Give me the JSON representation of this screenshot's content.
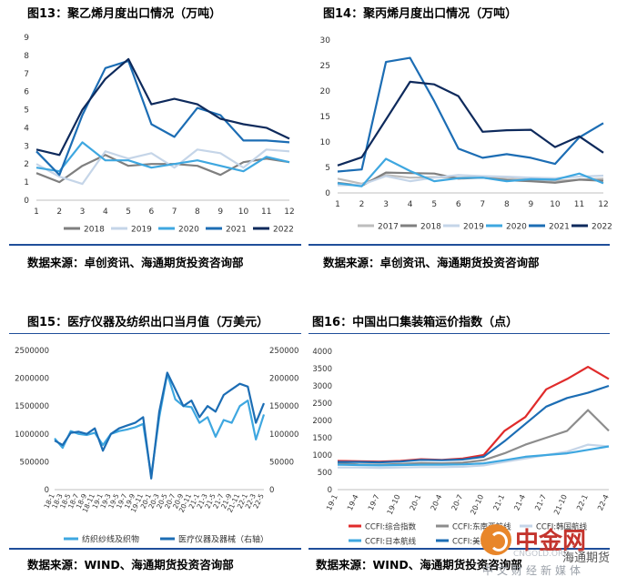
{
  "chart_data": [
    {
      "type": "line",
      "title": "图13：聚乙烯月度出口情况（万吨）",
      "x": [
        1,
        2,
        3,
        4,
        5,
        6,
        7,
        8,
        9,
        10,
        11,
        12
      ],
      "ylim": [
        0,
        9
      ],
      "yticks": [
        0,
        1,
        2,
        3,
        4,
        5,
        6,
        7,
        8,
        9
      ],
      "series": [
        {
          "name": "2018",
          "color": "#7f7f7f",
          "width": 2.2,
          "values": [
            1.5,
            1.0,
            1.9,
            2.5,
            1.9,
            2.0,
            2.0,
            1.9,
            1.4,
            2.1,
            2.3,
            2.1
          ]
        },
        {
          "name": "2019",
          "color": "#c5d5e8",
          "width": 2.2,
          "values": [
            2.0,
            1.3,
            0.9,
            2.7,
            2.3,
            2.6,
            1.8,
            2.8,
            2.6,
            1.8,
            2.8,
            2.7
          ]
        },
        {
          "name": "2020",
          "color": "#3ea7e0",
          "width": 2.2,
          "values": [
            1.8,
            1.6,
            3.2,
            2.2,
            2.2,
            1.8,
            2.0,
            2.2,
            1.9,
            1.6,
            2.4,
            2.1
          ]
        },
        {
          "name": "2021",
          "color": "#1c6db4",
          "width": 2.2,
          "values": [
            2.7,
            1.4,
            4.7,
            7.3,
            7.7,
            4.2,
            3.5,
            5.1,
            4.7,
            3.3,
            3.3,
            3.2
          ]
        },
        {
          "name": "2022",
          "color": "#0e2a5c",
          "width": 2.2,
          "values": [
            2.8,
            2.5,
            5.0,
            6.7,
            7.8,
            5.3,
            5.6,
            5.3,
            4.5,
            4.2,
            4.0,
            3.4
          ]
        }
      ]
    },
    {
      "type": "line",
      "title": "图14：聚丙烯月度出口情况（万吨）",
      "x": [
        1,
        2,
        3,
        4,
        5,
        6,
        7,
        8,
        9,
        10,
        11,
        12
      ],
      "ylim": [
        0,
        30
      ],
      "yticks": [
        0,
        5,
        10,
        15,
        20,
        25,
        30
      ],
      "series": [
        {
          "name": "2017",
          "color": "#bdbdbd",
          "width": 2.2,
          "values": [
            2.8,
            1.8,
            3.5,
            3.0,
            3.1,
            3.0,
            3.1,
            2.8,
            2.6,
            2.4,
            2.6,
            2.8
          ]
        },
        {
          "name": "2018",
          "color": "#7f7f7f",
          "width": 2.2,
          "values": [
            2.0,
            1.4,
            4.0,
            3.9,
            3.8,
            2.8,
            3.0,
            2.5,
            2.3,
            2.0,
            2.6,
            2.4
          ]
        },
        {
          "name": "2019",
          "color": "#c5d5e8",
          "width": 2.2,
          "values": [
            1.5,
            1.6,
            3.3,
            2.3,
            3.0,
            3.5,
            3.3,
            3.2,
            3.0,
            2.9,
            3.2,
            3.4
          ]
        },
        {
          "name": "2020",
          "color": "#3ea7e0",
          "width": 2.2,
          "values": [
            1.9,
            1.3,
            6.7,
            4.3,
            2.3,
            2.9,
            3.0,
            2.3,
            2.7,
            2.6,
            3.8,
            1.9
          ]
        },
        {
          "name": "2021",
          "color": "#1c6db4",
          "width": 2.2,
          "values": [
            4.2,
            4.6,
            25.7,
            26.5,
            18.0,
            8.7,
            6.9,
            7.6,
            6.9,
            5.7,
            10.9,
            13.7
          ]
        },
        {
          "name": "2022",
          "color": "#0e2a5c",
          "width": 2.2,
          "values": [
            5.4,
            7.0,
            14.4,
            21.8,
            21.3,
            19.0,
            12.0,
            12.3,
            12.4,
            9.0,
            11.1,
            7.9
          ]
        }
      ]
    },
    {
      "type": "line",
      "title": "图15：医疗仪器及纺织出口当月值（万美元）",
      "categories": [
        "18-1",
        "18-3",
        "18-5",
        "18-7",
        "18-9",
        "18-11",
        "19-1",
        "19-3",
        "19-5",
        "19-7",
        "19-9",
        "19-11",
        "20-1",
        "20-3",
        "20-5",
        "20-7",
        "20-9",
        "20-11",
        "21-1",
        "21-3",
        "21-5",
        "21-7",
        "21-9",
        "21-11",
        "22-1",
        "22-3",
        "22-5"
      ],
      "ylim_left": [
        0,
        2500000
      ],
      "yticks_left": [
        "0",
        "500000",
        "1000000",
        "1500000",
        "2000000",
        "2500000"
      ],
      "ylim_right": [
        0,
        250000
      ],
      "yticks_right": [
        "0",
        "50000",
        "100000",
        "150000",
        "200000",
        "250000"
      ],
      "series": [
        {
          "name": "纺织纱线及织物",
          "axis": "left",
          "color": "#3ea7e0",
          "width": 2.2,
          "values": [
            920000,
            750000,
            1050000,
            1000000,
            980000,
            1020000,
            800000,
            1000000,
            1050000,
            1080000,
            1120000,
            1180000,
            250000,
            1300000,
            2080000,
            1620000,
            1500000,
            1480000,
            1200000,
            1300000,
            950000,
            1250000,
            1200000,
            1500000,
            1600000,
            900000,
            1350000
          ]
        },
        {
          "name": "医疗仪器及器械（右轴）",
          "axis": "right",
          "color": "#1c6db4",
          "width": 2.2,
          "values": [
            88000,
            80000,
            102000,
            104000,
            100000,
            110000,
            70000,
            100000,
            110000,
            115000,
            120000,
            130000,
            20000,
            140000,
            210000,
            180000,
            150000,
            160000,
            130000,
            150000,
            140000,
            170000,
            180000,
            190000,
            185000,
            120000,
            155000
          ]
        }
      ]
    },
    {
      "type": "line",
      "title": "图16：中国出口集装箱运价指数（点）",
      "categories": [
        "19-1",
        "19-4",
        "19-7",
        "19-10",
        "20-1",
        "20-4",
        "20-7",
        "20-10",
        "21-1",
        "21-4",
        "21-7",
        "21-10",
        "22-1",
        "22-4"
      ],
      "ylim": [
        0,
        4000
      ],
      "yticks": [
        0,
        500,
        1000,
        1500,
        2000,
        2500,
        3000,
        3500,
        4000
      ],
      "series": [
        {
          "name": "CCFI:综合指数",
          "color": "#e02b2b",
          "width": 2.2,
          "values": [
            830,
            820,
            810,
            830,
            880,
            860,
            900,
            1000,
            1700,
            2100,
            2900,
            3200,
            3550,
            3200
          ]
        },
        {
          "name": "CCFI:东南亚航线",
          "color": "#8c8c8c",
          "width": 2.2,
          "values": [
            760,
            730,
            720,
            740,
            770,
            760,
            780,
            850,
            1050,
            1300,
            1500,
            1700,
            2300,
            1700
          ]
        },
        {
          "name": "CCFI:韩国航线",
          "color": "#c5d5e8",
          "width": 2.2,
          "values": [
            640,
            640,
            630,
            640,
            650,
            650,
            660,
            700,
            800,
            900,
            1000,
            1100,
            1300,
            1250
          ]
        },
        {
          "name": "CCFI:日本航线",
          "color": "#3ea7e0",
          "width": 2.2,
          "values": [
            720,
            710,
            700,
            710,
            720,
            720,
            730,
            760,
            850,
            950,
            1000,
            1050,
            1150,
            1250
          ]
        },
        {
          "name": "CCFI:美东航线",
          "color": "#1c6db4",
          "width": 2.2,
          "values": [
            800,
            800,
            790,
            810,
            860,
            850,
            870,
            950,
            1400,
            1900,
            2400,
            2650,
            2800,
            3000
          ]
        }
      ]
    }
  ],
  "sources": {
    "s1": "数据来源：卓创资讯、海通期货投资咨询部",
    "s2": "数据来源：卓创资讯、海通期货投资咨询部",
    "s3": "数据来源：WIND、海通期货投资咨询部",
    "s4": "数据来源：WIND、海通期货投资咨询部"
  },
  "watermark": {
    "name": "中金网",
    "url": "CNGOLD.ORG",
    "sub": "中文财经新媒体",
    "overlay": "海通期货"
  }
}
